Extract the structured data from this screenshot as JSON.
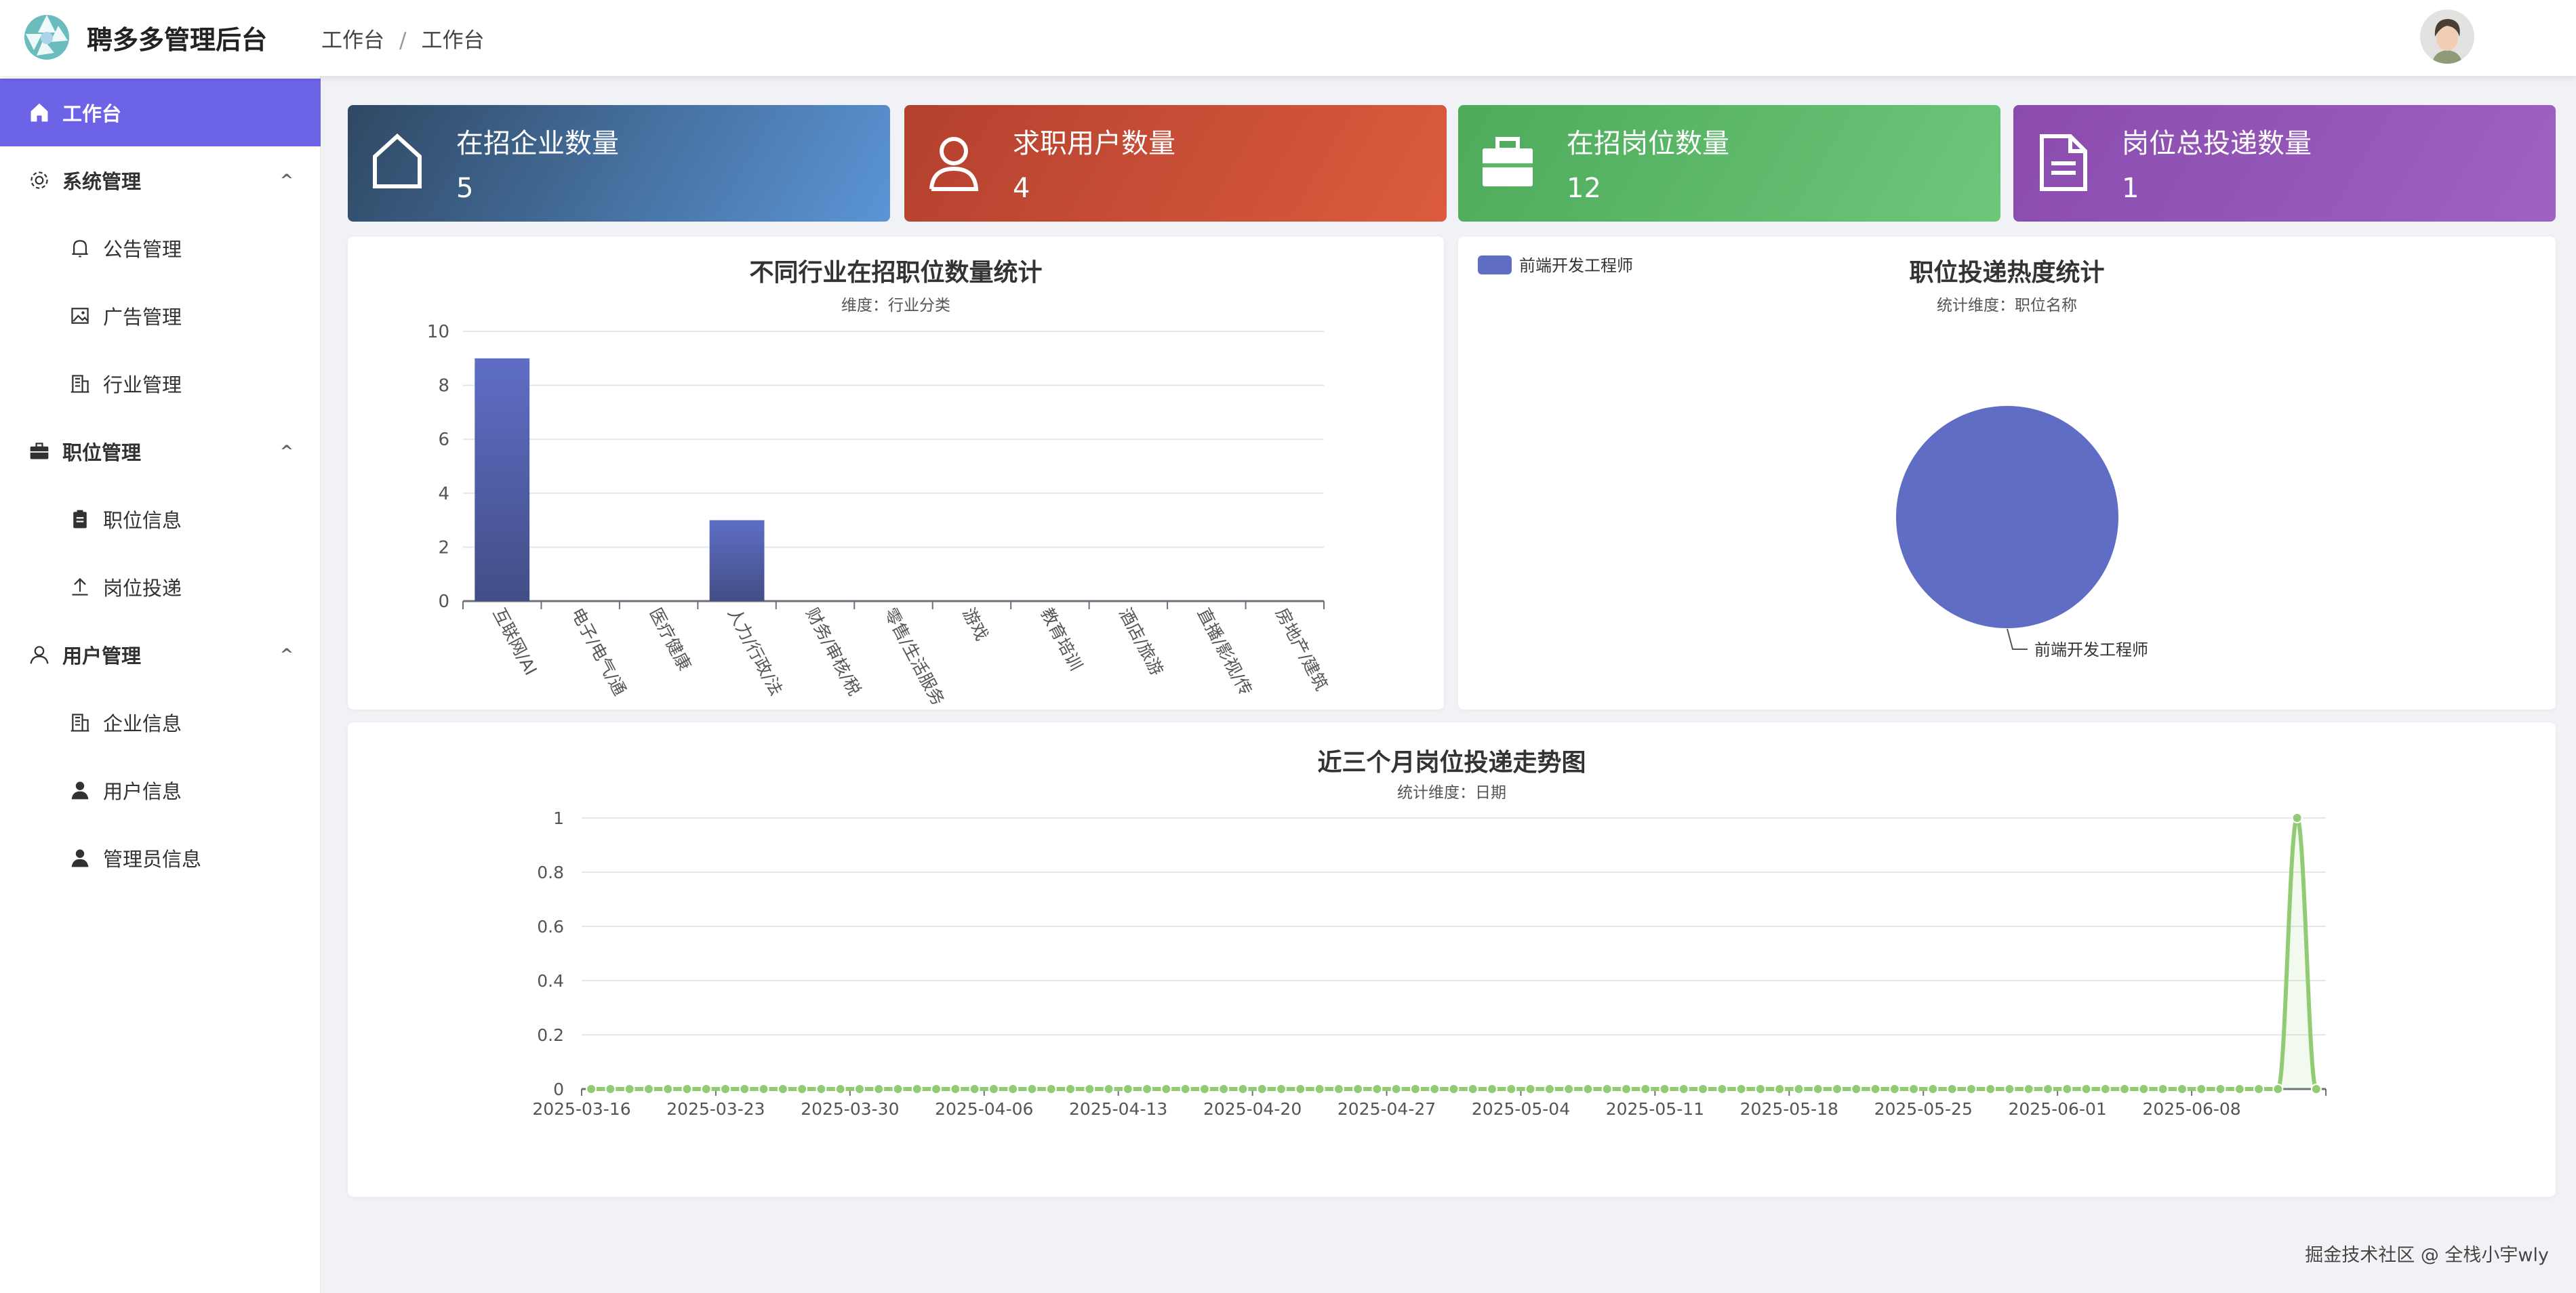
{
  "header": {
    "app_title": "聘多多管理后台",
    "breadcrumb": [
      "工作台",
      "工作台"
    ],
    "breadcrumb_sep": "/"
  },
  "sidebar": {
    "items": [
      {
        "label": "工作台",
        "icon": "home-icon",
        "type": "top",
        "active": true
      },
      {
        "label": "系统管理",
        "icon": "gear-icon",
        "type": "group",
        "expanded": true
      },
      {
        "label": "公告管理",
        "icon": "bell-icon",
        "type": "sub"
      },
      {
        "label": "广告管理",
        "icon": "picture-icon",
        "type": "sub"
      },
      {
        "label": "行业管理",
        "icon": "office-building-icon",
        "type": "sub"
      },
      {
        "label": "职位管理",
        "icon": "briefcase-icon",
        "type": "group",
        "expanded": true
      },
      {
        "label": "职位信息",
        "icon": "clipboard-icon",
        "type": "sub"
      },
      {
        "label": "岗位投递",
        "icon": "upload-icon",
        "type": "sub"
      },
      {
        "label": "用户管理",
        "icon": "user-icon",
        "type": "group",
        "expanded": true
      },
      {
        "label": "企业信息",
        "icon": "office-building-icon",
        "type": "sub"
      },
      {
        "label": "用户信息",
        "icon": "user-filled-icon",
        "type": "sub"
      },
      {
        "label": "管理员信息",
        "icon": "user-filled-icon",
        "type": "sub"
      }
    ],
    "chevron": "^"
  },
  "stats": [
    {
      "label": "在招企业数量",
      "value": "5",
      "icon": "house-icon",
      "colors": [
        "#2f4863",
        "#5b95d6"
      ]
    },
    {
      "label": "求职用户数量",
      "value": "4",
      "icon": "user-icon",
      "colors": [
        "#b3412e",
        "#dc5b3e"
      ]
    },
    {
      "label": "在招岗位数量",
      "value": "12",
      "icon": "briefcase-icon",
      "colors": [
        "#4dab5a",
        "#6ec67b"
      ]
    },
    {
      "label": "岗位总投递数量",
      "value": "1",
      "icon": "document-icon",
      "colors": [
        "#8a4bad",
        "#9d62c2"
      ]
    }
  ],
  "chart_data": [
    {
      "type": "bar",
      "title": "不同行业在招职位数量统计",
      "subtitle": "维度：行业分类",
      "categories": [
        "互联网/AI",
        "电子/电气/通",
        "医疗健康",
        "人力/行政/法",
        "财务/审核/税",
        "零售/生活服务",
        "游戏",
        "教育培训",
        "酒店/旅游",
        "直播/影视/传",
        "房地产/建筑"
      ],
      "values": [
        9,
        0,
        0,
        3,
        0,
        0,
        0,
        0,
        0,
        0,
        0
      ],
      "ylim": [
        0,
        10
      ],
      "yticks": [
        0,
        2,
        4,
        6,
        8,
        10
      ],
      "grid": true,
      "colors": [
        "#5e6ec6",
        "#424e86"
      ]
    },
    {
      "type": "pie",
      "title": "职位投递热度统计",
      "subtitle": "统计维度：职位名称",
      "slices": [
        {
          "name": "前端开发工程师",
          "value": 1
        }
      ],
      "legend": "top-left",
      "colors": [
        "#5f6ec4"
      ]
    },
    {
      "type": "line",
      "title": "近三个月岗位投递走势图",
      "subtitle": "统计维度：日期",
      "start": "2025-03-16",
      "end": "2025-06-14",
      "points": [
        {
          "x": "2025-06-13",
          "y": 1
        }
      ],
      "default_y": 0,
      "xticklabels": [
        "2025-03-16",
        "2025-03-23",
        "2025-03-30",
        "2025-04-06",
        "2025-04-13",
        "2025-04-20",
        "2025-04-27",
        "2025-05-04",
        "2025-05-11",
        "2025-05-18",
        "2025-05-25",
        "2025-06-01",
        "2025-06-08"
      ],
      "ylim": [
        0,
        1
      ],
      "yticks": [
        "0",
        "0.2",
        "0.4",
        "0.6",
        "0.8",
        "1"
      ],
      "smooth": true,
      "grid": true,
      "colors": [
        "#91cc75"
      ]
    }
  ],
  "footer": "掘金技术社区 @ 全栈小宇wly"
}
